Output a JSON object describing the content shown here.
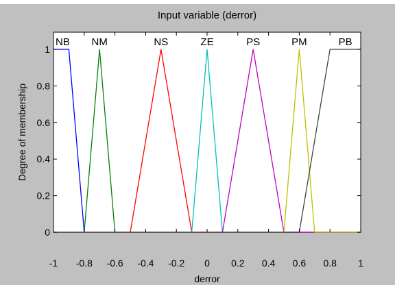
{
  "chart_data": {
    "type": "line",
    "title": "Input variable (derror)",
    "xlabel": "derror",
    "ylabel": "Degree of membership",
    "xlim": [
      -1,
      1
    ],
    "ylim": [
      0,
      1
    ],
    "xticks": [
      -1,
      -0.8,
      -0.6,
      -0.4,
      -0.2,
      0,
      0.2,
      0.4,
      0.6,
      0.8,
      1
    ],
    "xtick_labels": [
      "-1",
      "-0.8",
      "-0.6",
      "-0.4",
      "-0.2",
      "0",
      "0.2",
      "0.4",
      "0.6",
      "0.8",
      "1"
    ],
    "yticks": [
      0,
      0.2,
      0.4,
      0.6,
      0.8,
      1
    ],
    "ytick_labels": [
      "0",
      "0.2",
      "0.4",
      "0.6",
      "0.8",
      "1"
    ],
    "grid": false,
    "series": [
      {
        "name": "NB",
        "color": "#0000ff",
        "x": [
          -1,
          -0.9,
          -0.8,
          1
        ],
        "y": [
          1,
          1,
          0,
          0
        ],
        "label_x": -0.94
      },
      {
        "name": "NM",
        "color": "#008000",
        "x": [
          -1,
          -0.8,
          -0.7,
          -0.6,
          1
        ],
        "y": [
          0,
          0,
          1,
          0,
          0
        ],
        "label_x": -0.7
      },
      {
        "name": "NS",
        "color": "#ff0000",
        "x": [
          -1,
          -0.5,
          -0.3,
          -0.1,
          1
        ],
        "y": [
          0,
          0,
          1,
          0,
          0
        ],
        "label_x": -0.3
      },
      {
        "name": "ZE",
        "color": "#00bfbf",
        "x": [
          -1,
          -0.1,
          0,
          0.1,
          1
        ],
        "y": [
          0,
          0,
          1,
          0,
          0
        ],
        "label_x": 0
      },
      {
        "name": "PS",
        "color": "#bf00bf",
        "x": [
          -1,
          0.1,
          0.3,
          0.5,
          1
        ],
        "y": [
          0,
          0,
          1,
          0,
          0
        ],
        "label_x": 0.3
      },
      {
        "name": "PM",
        "color": "#bfbf00",
        "x": [
          -1,
          0.5,
          0.6,
          0.7,
          1
        ],
        "y": [
          0,
          0,
          1,
          0,
          0
        ],
        "label_x": 0.6
      },
      {
        "name": "PB",
        "color": "#404040",
        "x": [
          -1,
          0.6,
          0.8,
          1
        ],
        "y": [
          0,
          0,
          1,
          1
        ],
        "label_x": 0.9
      }
    ]
  }
}
